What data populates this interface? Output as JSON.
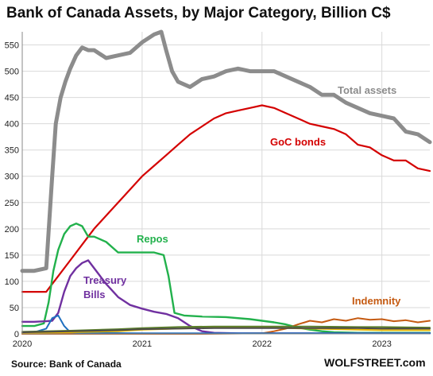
{
  "title": "Bank of Canada Assets, by Major Category, Billion C$",
  "source": "Source: Bank of Canada",
  "brand": "WOLFSTREET.com",
  "chart_data": {
    "type": "line",
    "title": "Bank of Canada Assets, by Major Category, Billion C$",
    "xlabel": "",
    "ylabel": "",
    "xlim": [
      2020.0,
      2023.4
    ],
    "ylim": [
      0,
      575
    ],
    "grid": {
      "horizontal": true,
      "vertical": true
    },
    "x_ticks": [
      "2020",
      "2021",
      "2022",
      "2023"
    ],
    "y_ticks": [
      0,
      50,
      100,
      150,
      200,
      250,
      300,
      350,
      400,
      450,
      500,
      550
    ],
    "series": [
      {
        "name": "Total assets",
        "color": "#8c8c8c",
        "x": [
          2020.0,
          2020.1,
          2020.2,
          2020.25,
          2020.28,
          2020.32,
          2020.36,
          2020.4,
          2020.45,
          2020.5,
          2020.55,
          2020.6,
          2020.7,
          2020.8,
          2020.9,
          2021.0,
          2021.1,
          2021.16,
          2021.2,
          2021.25,
          2021.3,
          2021.4,
          2021.5,
          2021.6,
          2021.7,
          2021.8,
          2021.9,
          2022.0,
          2022.1,
          2022.2,
          2022.3,
          2022.4,
          2022.5,
          2022.6,
          2022.7,
          2022.8,
          2022.9,
          2023.0,
          2023.1,
          2023.2,
          2023.3,
          2023.4
        ],
        "values": [
          120,
          120,
          125,
          300,
          400,
          450,
          480,
          505,
          530,
          545,
          540,
          540,
          525,
          530,
          535,
          555,
          570,
          575,
          540,
          500,
          480,
          470,
          485,
          490,
          500,
          505,
          500,
          500,
          500,
          490,
          480,
          470,
          455,
          455,
          440,
          430,
          420,
          415,
          410,
          385,
          380,
          365
        ]
      },
      {
        "name": "GoC bonds",
        "color": "#d40000",
        "x": [
          2020.0,
          2020.1,
          2020.2,
          2020.3,
          2020.4,
          2020.5,
          2020.6,
          2020.7,
          2020.8,
          2020.9,
          2021.0,
          2021.1,
          2021.2,
          2021.3,
          2021.4,
          2021.5,
          2021.6,
          2021.7,
          2021.8,
          2021.9,
          2022.0,
          2022.1,
          2022.2,
          2022.3,
          2022.4,
          2022.5,
          2022.6,
          2022.7,
          2022.8,
          2022.9,
          2023.0,
          2023.1,
          2023.2,
          2023.3,
          2023.4
        ],
        "values": [
          80,
          80,
          80,
          110,
          140,
          170,
          200,
          225,
          250,
          275,
          300,
          320,
          340,
          360,
          380,
          395,
          410,
          420,
          425,
          430,
          435,
          430,
          420,
          410,
          400,
          395,
          390,
          380,
          360,
          355,
          340,
          330,
          330,
          315,
          310
        ]
      },
      {
        "name": "Repos",
        "color": "#22b14c",
        "x": [
          2020.0,
          2020.1,
          2020.18,
          2020.22,
          2020.26,
          2020.3,
          2020.35,
          2020.4,
          2020.45,
          2020.5,
          2020.55,
          2020.6,
          2020.7,
          2020.8,
          2020.9,
          2021.0,
          2021.1,
          2021.18,
          2021.22,
          2021.27,
          2021.35,
          2021.5,
          2021.7,
          2021.9,
          2022.0,
          2022.1,
          2022.2,
          2022.3,
          2022.4,
          2022.5,
          2022.6,
          2022.8,
          2023.0,
          2023.2,
          2023.4
        ],
        "values": [
          15,
          15,
          20,
          60,
          120,
          160,
          190,
          205,
          210,
          205,
          185,
          185,
          175,
          155,
          155,
          155,
          155,
          150,
          110,
          40,
          35,
          33,
          32,
          28,
          25,
          22,
          18,
          12,
          8,
          5,
          3,
          2,
          2,
          2,
          2
        ]
      },
      {
        "name": "Treasury Bills",
        "color": "#7030a0",
        "x": [
          2020.0,
          2020.1,
          2020.2,
          2020.25,
          2020.3,
          2020.35,
          2020.4,
          2020.45,
          2020.5,
          2020.55,
          2020.6,
          2020.7,
          2020.8,
          2020.9,
          2021.0,
          2021.1,
          2021.2,
          2021.3,
          2021.4,
          2021.5,
          2021.6,
          2021.8,
          2022.0,
          2022.5,
          2023.0,
          2023.4
        ],
        "values": [
          23,
          23,
          24,
          25,
          40,
          80,
          110,
          125,
          135,
          140,
          125,
          95,
          70,
          55,
          48,
          42,
          38,
          30,
          15,
          5,
          2,
          1,
          1,
          1,
          1,
          1
        ]
      },
      {
        "name": "Indemnity",
        "color": "#c55a11",
        "x": [
          2020.0,
          2020.5,
          2021.0,
          2021.5,
          2022.0,
          2022.1,
          2022.2,
          2022.3,
          2022.4,
          2022.5,
          2022.6,
          2022.7,
          2022.8,
          2022.9,
          2023.0,
          2023.1,
          2023.2,
          2023.3,
          2023.4
        ],
        "values": [
          0,
          0,
          0,
          0,
          1,
          5,
          10,
          18,
          25,
          22,
          28,
          25,
          30,
          27,
          28,
          24,
          26,
          22,
          25
        ]
      },
      {
        "name": "",
        "color": "#1f6fbf",
        "x": [
          2020.0,
          2020.1,
          2020.2,
          2020.25,
          2020.3,
          2020.35,
          2020.4,
          2020.5,
          2021.0,
          2022.0,
          2023.0,
          2023.4
        ],
        "values": [
          2,
          3,
          10,
          30,
          35,
          15,
          3,
          2,
          1,
          1,
          1,
          1
        ]
      },
      {
        "name": "",
        "color": "#e6b800",
        "x": [
          2020.0,
          2020.4,
          2020.8,
          2021.0,
          2021.3,
          2021.6,
          2022.0,
          2022.4,
          2022.8,
          2023.0,
          2023.4
        ],
        "values": [
          2,
          3,
          5,
          8,
          10,
          12,
          12,
          10,
          8,
          7,
          7
        ]
      },
      {
        "name": "",
        "color": "#5b7f2a",
        "x": [
          2020.0,
          2020.4,
          2020.8,
          2021.0,
          2021.3,
          2021.6,
          2022.0,
          2022.4,
          2022.8,
          2023.0,
          2023.4
        ],
        "values": [
          4,
          6,
          9,
          11,
          13,
          14,
          14,
          14,
          13,
          13,
          12
        ]
      },
      {
        "name": "",
        "color": "#4a4a4a",
        "x": [
          2020.0,
          2020.4,
          2020.8,
          2021.0,
          2021.3,
          2021.6,
          2022.0,
          2022.4,
          2022.8,
          2023.0,
          2023.4
        ],
        "values": [
          3,
          5,
          7,
          9,
          10,
          11,
          11,
          11,
          11,
          10,
          10
        ]
      }
    ],
    "annotations": [
      {
        "text": "Total assets",
        "color": "#8c8c8c"
      },
      {
        "text": "GoC bonds",
        "color": "#d40000"
      },
      {
        "text": "Repos",
        "color": "#22b14c"
      },
      {
        "text": "Treasury",
        "color": "#7030a0"
      },
      {
        "text": "Bills",
        "color": "#7030a0"
      },
      {
        "text": "Indemnity",
        "color": "#c55a11"
      }
    ]
  }
}
